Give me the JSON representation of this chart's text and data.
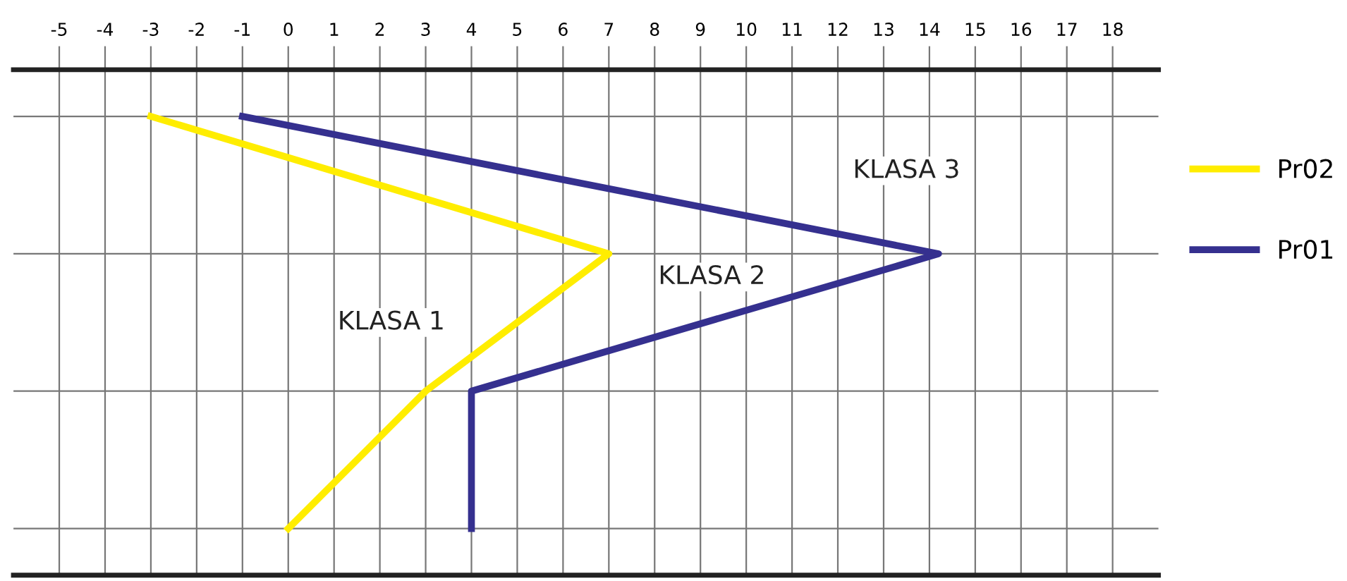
{
  "chart_data": {
    "type": "line",
    "orientation": "horizontal",
    "categories": [
      null,
      null,
      null,
      null
    ],
    "series": [
      {
        "name": "Pr02",
        "color": "#ffed00",
        "values": [
          -3,
          7,
          3,
          0
        ]
      },
      {
        "name": "Pr01",
        "color": "#35308f",
        "values": [
          -1,
          14.2,
          4,
          4
        ]
      }
    ],
    "xlim": [
      -6,
      19
    ],
    "xticks": [
      -5,
      -4,
      -3,
      -2,
      -1,
      0,
      1,
      2,
      3,
      4,
      5,
      6,
      7,
      8,
      9,
      10,
      11,
      12,
      13,
      14,
      15,
      16,
      17,
      18
    ],
    "annotations": [
      "KLASA 1",
      "KLASA 2",
      "KLASA 3"
    ],
    "grid": true,
    "legend": "right",
    "tick_labels": "x",
    "line_style": "solid",
    "marker": "none"
  }
}
